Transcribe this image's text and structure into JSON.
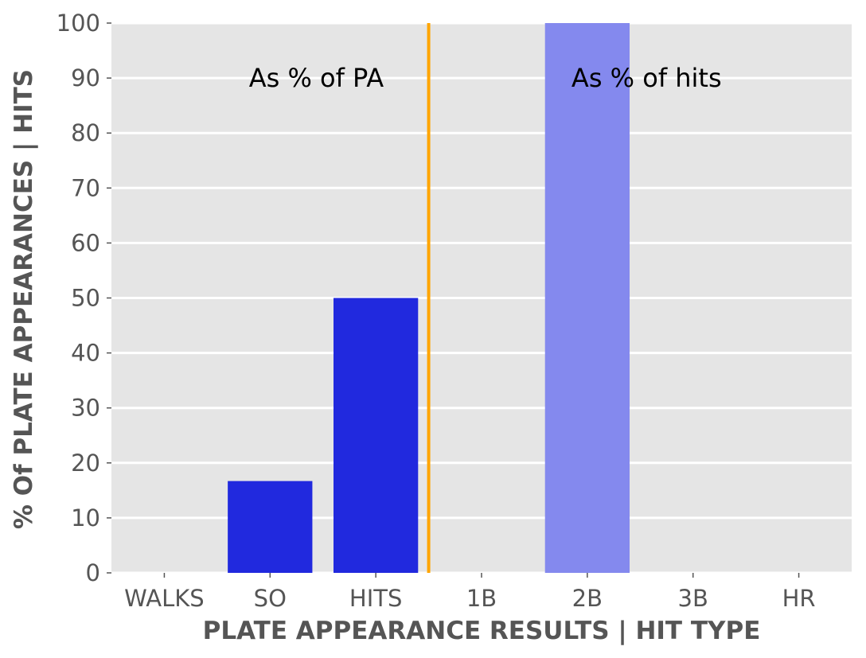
{
  "chart_data": {
    "type": "bar",
    "categories": [
      "WALKS",
      "SO",
      "HITS",
      "1B",
      "2B",
      "3B",
      "HR"
    ],
    "values": [
      0,
      16.7,
      50,
      0,
      100,
      0,
      0
    ],
    "bar_colors": [
      "#2129de",
      "#2129de",
      "#2129de",
      "#8489ee",
      "#8489ee",
      "#8489ee",
      "#8489ee"
    ],
    "xlabel": "PLATE APPEARANCE RESULTS | HIT TYPE",
    "ylabel": "% Of PLATE APPEARANCES | HITS",
    "ylim": [
      0,
      100
    ],
    "yticks": [
      0,
      10,
      20,
      30,
      40,
      50,
      60,
      70,
      80,
      90,
      100
    ],
    "grid": true,
    "divider": {
      "x": 2.5,
      "color": "#ffa500"
    },
    "annotations": [
      {
        "text": "As % of PA",
        "x": 0.8,
        "y": 90
      },
      {
        "text": "As % of hits",
        "x": 3.85,
        "y": 90
      }
    ],
    "colors": {
      "background": "#e5e5e5",
      "grid": "#ffffff",
      "tick_text": "#555555"
    }
  }
}
